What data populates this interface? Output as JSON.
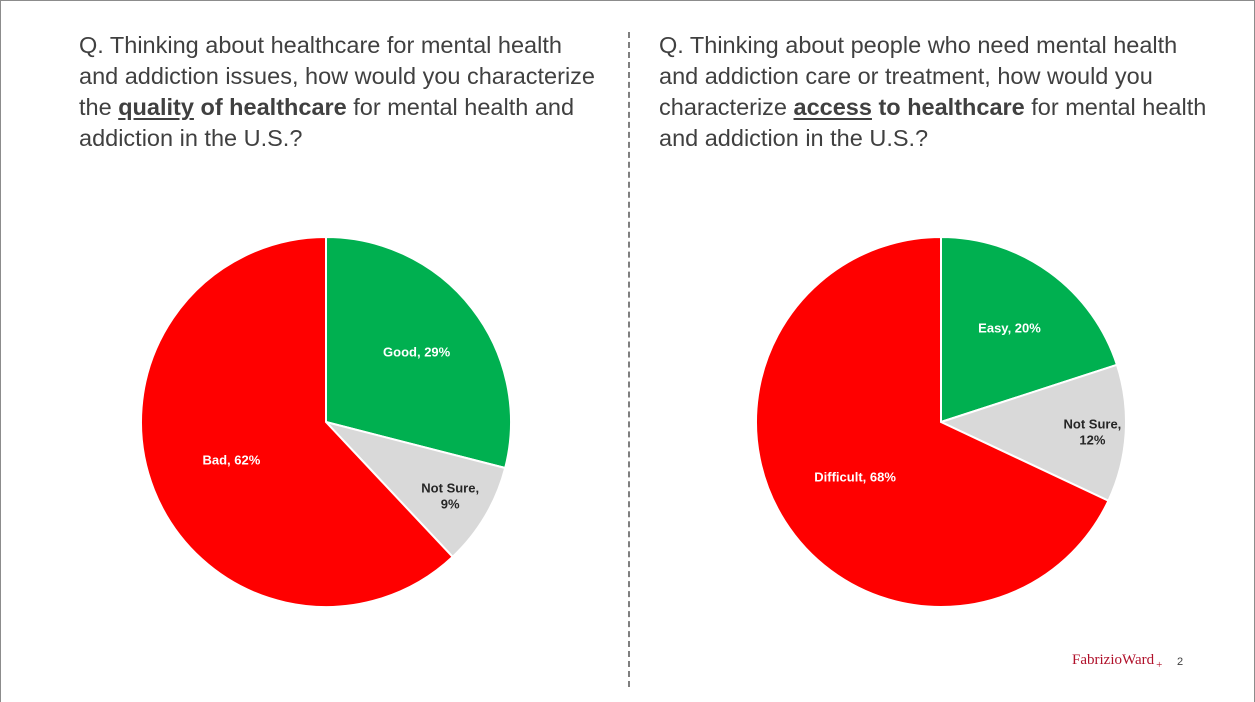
{
  "questions": {
    "left": {
      "before": "Q. Thinking about healthcare for mental health and addiction issues, how would you characterize the ",
      "underlined": "quality",
      "bold": " of healthcare",
      "after": " for mental health and addiction in the U.S.?"
    },
    "right": {
      "before": "Q. Thinking about people who need mental health and addiction care or treatment, how would you characterize ",
      "underlined": "access",
      "bold": " to healthcare",
      "after": " for mental health and addiction in the U.S.?"
    }
  },
  "chart_data": [
    {
      "type": "pie",
      "start": "12 o'clock",
      "direction": "clockwise",
      "slices": [
        {
          "name": "Good",
          "value": 29,
          "label": "Good, 29%",
          "color": "#00b050",
          "label_color": "#ffffff"
        },
        {
          "name": "Not Sure",
          "value": 9,
          "label": "Not Sure,\n9%",
          "color": "#d9d9d9",
          "label_color": "#262626"
        },
        {
          "name": "Bad",
          "value": 62,
          "label": "Bad, 62%",
          "color": "#ff0000",
          "label_color": "#ffffff"
        }
      ]
    },
    {
      "type": "pie",
      "start": "12 o'clock",
      "direction": "clockwise",
      "slices": [
        {
          "name": "Easy",
          "value": 20,
          "label": "Easy, 20%",
          "color": "#00b050",
          "label_color": "#ffffff"
        },
        {
          "name": "Not Sure",
          "value": 12,
          "label": "Not Sure,\n12%",
          "color": "#d9d9d9",
          "label_color": "#262626"
        },
        {
          "name": "Difficult",
          "value": 68,
          "label": "Difficult, 68%",
          "color": "#ff0000",
          "label_color": "#ffffff"
        }
      ]
    }
  ],
  "footer": {
    "logo_main": "FabrizioWard",
    "logo_plus": "+",
    "page_number": "2"
  }
}
